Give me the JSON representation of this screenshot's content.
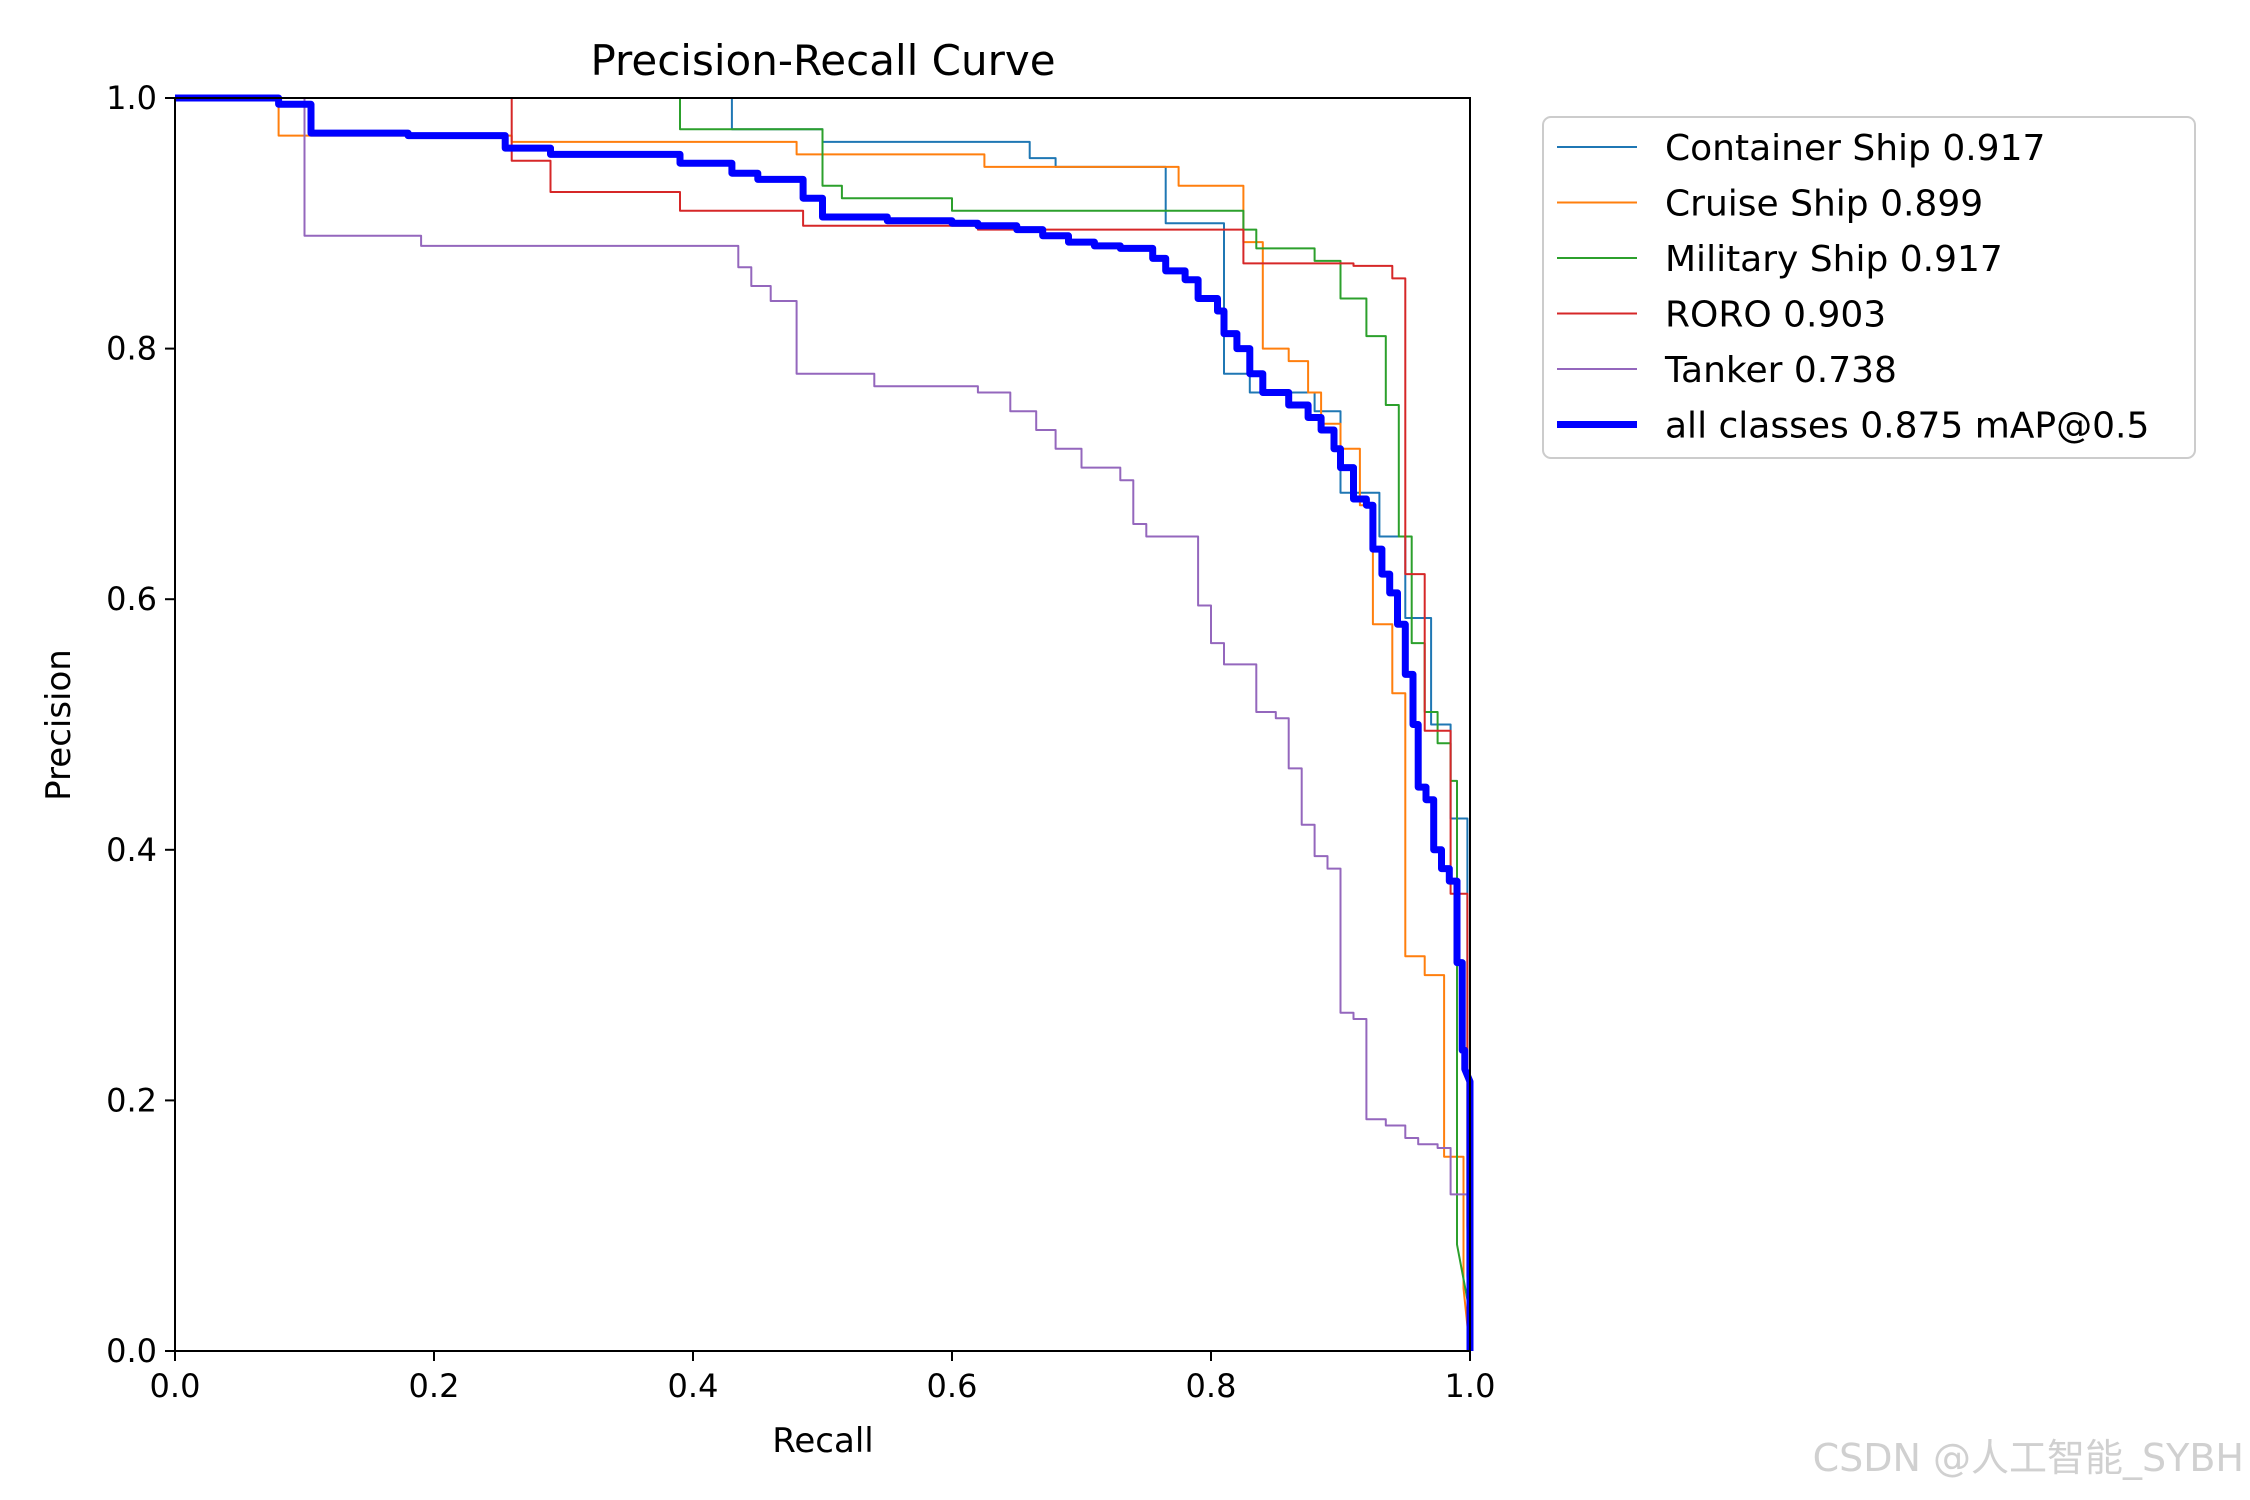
{
  "chart_data": {
    "type": "line",
    "title": "Precision-Recall Curve",
    "xlabel": "Recall",
    "ylabel": "Precision",
    "xlim": [
      0,
      1
    ],
    "ylim": [
      0,
      1
    ],
    "xticks": [
      "0.0",
      "0.2",
      "0.4",
      "0.6",
      "0.8",
      "1.0"
    ],
    "yticks": [
      "0.0",
      "0.2",
      "0.4",
      "0.6",
      "0.8",
      "1.0"
    ],
    "grid": false,
    "legend_position": "outside-top-right",
    "series": [
      {
        "name": "Container Ship 0.917",
        "color": "#1f77b4",
        "width": "thin",
        "points": [
          [
            0,
            1
          ],
          [
            0.43,
            1
          ],
          [
            0.43,
            0.975
          ],
          [
            0.5,
            0.975
          ],
          [
            0.5,
            0.965
          ],
          [
            0.66,
            0.965
          ],
          [
            0.66,
            0.952
          ],
          [
            0.68,
            0.952
          ],
          [
            0.68,
            0.945
          ],
          [
            0.765,
            0.945
          ],
          [
            0.765,
            0.9
          ],
          [
            0.81,
            0.9
          ],
          [
            0.81,
            0.78
          ],
          [
            0.83,
            0.78
          ],
          [
            0.83,
            0.765
          ],
          [
            0.88,
            0.765
          ],
          [
            0.88,
            0.75
          ],
          [
            0.9,
            0.75
          ],
          [
            0.9,
            0.685
          ],
          [
            0.93,
            0.685
          ],
          [
            0.93,
            0.65
          ],
          [
            0.95,
            0.65
          ],
          [
            0.95,
            0.585
          ],
          [
            0.97,
            0.585
          ],
          [
            0.97,
            0.5
          ],
          [
            0.985,
            0.5
          ],
          [
            0.985,
            0.425
          ],
          [
            0.998,
            0.425
          ],
          [
            0.998,
            0.06
          ],
          [
            1,
            0
          ]
        ]
      },
      {
        "name": "Cruise Ship 0.899",
        "color": "#ff7f0e",
        "width": "thin",
        "points": [
          [
            0,
            1
          ],
          [
            0.08,
            1
          ],
          [
            0.08,
            0.97
          ],
          [
            0.26,
            0.97
          ],
          [
            0.26,
            0.965
          ],
          [
            0.48,
            0.965
          ],
          [
            0.48,
            0.955
          ],
          [
            0.625,
            0.955
          ],
          [
            0.625,
            0.945
          ],
          [
            0.775,
            0.945
          ],
          [
            0.775,
            0.93
          ],
          [
            0.825,
            0.93
          ],
          [
            0.825,
            0.885
          ],
          [
            0.84,
            0.885
          ],
          [
            0.84,
            0.8
          ],
          [
            0.86,
            0.8
          ],
          [
            0.86,
            0.79
          ],
          [
            0.875,
            0.79
          ],
          [
            0.875,
            0.765
          ],
          [
            0.885,
            0.765
          ],
          [
            0.885,
            0.74
          ],
          [
            0.9,
            0.74
          ],
          [
            0.9,
            0.72
          ],
          [
            0.915,
            0.72
          ],
          [
            0.915,
            0.675
          ],
          [
            0.925,
            0.675
          ],
          [
            0.925,
            0.58
          ],
          [
            0.94,
            0.58
          ],
          [
            0.94,
            0.525
          ],
          [
            0.95,
            0.525
          ],
          [
            0.95,
            0.315
          ],
          [
            0.965,
            0.315
          ],
          [
            0.965,
            0.3
          ],
          [
            0.98,
            0.3
          ],
          [
            0.98,
            0.155
          ],
          [
            0.995,
            0.155
          ],
          [
            0.995,
            0.05
          ],
          [
            1,
            0
          ]
        ]
      },
      {
        "name": "Military Ship 0.917",
        "color": "#2ca02c",
        "width": "thin",
        "points": [
          [
            0,
            1
          ],
          [
            0.39,
            1
          ],
          [
            0.39,
            0.975
          ],
          [
            0.5,
            0.975
          ],
          [
            0.5,
            0.93
          ],
          [
            0.515,
            0.93
          ],
          [
            0.515,
            0.92
          ],
          [
            0.6,
            0.92
          ],
          [
            0.6,
            0.91
          ],
          [
            0.825,
            0.91
          ],
          [
            0.825,
            0.895
          ],
          [
            0.835,
            0.895
          ],
          [
            0.835,
            0.88
          ],
          [
            0.88,
            0.88
          ],
          [
            0.88,
            0.87
          ],
          [
            0.9,
            0.87
          ],
          [
            0.9,
            0.84
          ],
          [
            0.92,
            0.84
          ],
          [
            0.92,
            0.81
          ],
          [
            0.935,
            0.81
          ],
          [
            0.935,
            0.755
          ],
          [
            0.945,
            0.755
          ],
          [
            0.945,
            0.65
          ],
          [
            0.955,
            0.65
          ],
          [
            0.955,
            0.565
          ],
          [
            0.965,
            0.565
          ],
          [
            0.965,
            0.51
          ],
          [
            0.975,
            0.51
          ],
          [
            0.975,
            0.485
          ],
          [
            0.985,
            0.485
          ],
          [
            0.985,
            0.455
          ],
          [
            0.99,
            0.455
          ],
          [
            0.99,
            0.085
          ],
          [
            1,
            0.03
          ],
          [
            1,
            0
          ]
        ]
      },
      {
        "name": "RORO 0.903",
        "color": "#d62728",
        "width": "thin",
        "points": [
          [
            0,
            1
          ],
          [
            0.26,
            1
          ],
          [
            0.26,
            0.95
          ],
          [
            0.29,
            0.95
          ],
          [
            0.29,
            0.925
          ],
          [
            0.39,
            0.925
          ],
          [
            0.39,
            0.91
          ],
          [
            0.485,
            0.91
          ],
          [
            0.485,
            0.898
          ],
          [
            0.62,
            0.898
          ],
          [
            0.62,
            0.895
          ],
          [
            0.825,
            0.895
          ],
          [
            0.825,
            0.868
          ],
          [
            0.91,
            0.868
          ],
          [
            0.91,
            0.866
          ],
          [
            0.94,
            0.866
          ],
          [
            0.94,
            0.856
          ],
          [
            0.95,
            0.856
          ],
          [
            0.95,
            0.62
          ],
          [
            0.965,
            0.62
          ],
          [
            0.965,
            0.495
          ],
          [
            0.985,
            0.495
          ],
          [
            0.985,
            0.365
          ],
          [
            0.998,
            0.365
          ],
          [
            0.998,
            0.1
          ],
          [
            1,
            0
          ]
        ]
      },
      {
        "name": "Tanker 0.738",
        "color": "#9467bd",
        "width": "thin",
        "points": [
          [
            0,
            1
          ],
          [
            0.1,
            1
          ],
          [
            0.1,
            0.89
          ],
          [
            0.19,
            0.89
          ],
          [
            0.19,
            0.882
          ],
          [
            0.435,
            0.882
          ],
          [
            0.435,
            0.865
          ],
          [
            0.445,
            0.865
          ],
          [
            0.445,
            0.85
          ],
          [
            0.46,
            0.85
          ],
          [
            0.46,
            0.838
          ],
          [
            0.48,
            0.838
          ],
          [
            0.48,
            0.78
          ],
          [
            0.54,
            0.78
          ],
          [
            0.54,
            0.77
          ],
          [
            0.62,
            0.77
          ],
          [
            0.62,
            0.765
          ],
          [
            0.645,
            0.765
          ],
          [
            0.645,
            0.75
          ],
          [
            0.665,
            0.75
          ],
          [
            0.665,
            0.735
          ],
          [
            0.68,
            0.735
          ],
          [
            0.68,
            0.72
          ],
          [
            0.7,
            0.72
          ],
          [
            0.7,
            0.705
          ],
          [
            0.73,
            0.705
          ],
          [
            0.73,
            0.695
          ],
          [
            0.74,
            0.695
          ],
          [
            0.74,
            0.66
          ],
          [
            0.75,
            0.66
          ],
          [
            0.75,
            0.65
          ],
          [
            0.79,
            0.65
          ],
          [
            0.79,
            0.595
          ],
          [
            0.8,
            0.595
          ],
          [
            0.8,
            0.565
          ],
          [
            0.81,
            0.565
          ],
          [
            0.81,
            0.548
          ],
          [
            0.835,
            0.548
          ],
          [
            0.835,
            0.51
          ],
          [
            0.85,
            0.51
          ],
          [
            0.85,
            0.505
          ],
          [
            0.86,
            0.505
          ],
          [
            0.86,
            0.465
          ],
          [
            0.87,
            0.465
          ],
          [
            0.87,
            0.42
          ],
          [
            0.88,
            0.42
          ],
          [
            0.88,
            0.395
          ],
          [
            0.89,
            0.395
          ],
          [
            0.89,
            0.385
          ],
          [
            0.9,
            0.385
          ],
          [
            0.9,
            0.27
          ],
          [
            0.91,
            0.27
          ],
          [
            0.91,
            0.265
          ],
          [
            0.92,
            0.265
          ],
          [
            0.92,
            0.185
          ],
          [
            0.935,
            0.185
          ],
          [
            0.935,
            0.18
          ],
          [
            0.95,
            0.18
          ],
          [
            0.95,
            0.17
          ],
          [
            0.96,
            0.17
          ],
          [
            0.96,
            0.165
          ],
          [
            0.975,
            0.165
          ],
          [
            0.975,
            0.162
          ],
          [
            0.985,
            0.162
          ],
          [
            0.985,
            0.125
          ],
          [
            0.998,
            0.125
          ],
          [
            1,
            0
          ]
        ]
      },
      {
        "name": "all classes 0.875 mAP@0.5",
        "color": "#0000ff",
        "width": "thick",
        "points": [
          [
            0,
            1
          ],
          [
            0.08,
            1
          ],
          [
            0.08,
            0.995
          ],
          [
            0.105,
            0.995
          ],
          [
            0.105,
            0.972
          ],
          [
            0.18,
            0.972
          ],
          [
            0.18,
            0.97
          ],
          [
            0.255,
            0.97
          ],
          [
            0.255,
            0.96
          ],
          [
            0.29,
            0.96
          ],
          [
            0.29,
            0.955
          ],
          [
            0.39,
            0.955
          ],
          [
            0.39,
            0.948
          ],
          [
            0.43,
            0.948
          ],
          [
            0.43,
            0.94
          ],
          [
            0.45,
            0.94
          ],
          [
            0.45,
            0.935
          ],
          [
            0.485,
            0.935
          ],
          [
            0.485,
            0.92
          ],
          [
            0.5,
            0.92
          ],
          [
            0.5,
            0.905
          ],
          [
            0.55,
            0.905
          ],
          [
            0.55,
            0.902
          ],
          [
            0.6,
            0.902
          ],
          [
            0.6,
            0.9
          ],
          [
            0.62,
            0.9
          ],
          [
            0.62,
            0.898
          ],
          [
            0.65,
            0.898
          ],
          [
            0.65,
            0.895
          ],
          [
            0.67,
            0.895
          ],
          [
            0.67,
            0.89
          ],
          [
            0.69,
            0.89
          ],
          [
            0.69,
            0.885
          ],
          [
            0.71,
            0.885
          ],
          [
            0.71,
            0.882
          ],
          [
            0.73,
            0.882
          ],
          [
            0.73,
            0.88
          ],
          [
            0.755,
            0.88
          ],
          [
            0.755,
            0.872
          ],
          [
            0.765,
            0.872
          ],
          [
            0.765,
            0.862
          ],
          [
            0.78,
            0.862
          ],
          [
            0.78,
            0.855
          ],
          [
            0.79,
            0.855
          ],
          [
            0.79,
            0.84
          ],
          [
            0.805,
            0.84
          ],
          [
            0.805,
            0.83
          ],
          [
            0.81,
            0.83
          ],
          [
            0.81,
            0.812
          ],
          [
            0.82,
            0.812
          ],
          [
            0.82,
            0.8
          ],
          [
            0.83,
            0.8
          ],
          [
            0.83,
            0.78
          ],
          [
            0.84,
            0.78
          ],
          [
            0.84,
            0.765
          ],
          [
            0.86,
            0.765
          ],
          [
            0.86,
            0.755
          ],
          [
            0.875,
            0.755
          ],
          [
            0.875,
            0.745
          ],
          [
            0.885,
            0.745
          ],
          [
            0.885,
            0.735
          ],
          [
            0.895,
            0.735
          ],
          [
            0.895,
            0.72
          ],
          [
            0.9,
            0.72
          ],
          [
            0.9,
            0.705
          ],
          [
            0.91,
            0.705
          ],
          [
            0.91,
            0.68
          ],
          [
            0.92,
            0.68
          ],
          [
            0.92,
            0.675
          ],
          [
            0.925,
            0.675
          ],
          [
            0.925,
            0.64
          ],
          [
            0.932,
            0.64
          ],
          [
            0.932,
            0.62
          ],
          [
            0.938,
            0.62
          ],
          [
            0.938,
            0.605
          ],
          [
            0.944,
            0.605
          ],
          [
            0.944,
            0.58
          ],
          [
            0.95,
            0.58
          ],
          [
            0.95,
            0.54
          ],
          [
            0.956,
            0.54
          ],
          [
            0.956,
            0.5
          ],
          [
            0.96,
            0.5
          ],
          [
            0.96,
            0.45
          ],
          [
            0.966,
            0.45
          ],
          [
            0.966,
            0.44
          ],
          [
            0.972,
            0.44
          ],
          [
            0.972,
            0.4
          ],
          [
            0.978,
            0.4
          ],
          [
            0.978,
            0.385
          ],
          [
            0.984,
            0.385
          ],
          [
            0.984,
            0.375
          ],
          [
            0.99,
            0.375
          ],
          [
            0.99,
            0.31
          ],
          [
            0.994,
            0.31
          ],
          [
            0.994,
            0.24
          ],
          [
            0.996,
            0.24
          ],
          [
            0.996,
            0.225
          ],
          [
            1,
            0.215
          ],
          [
            1,
            0
          ]
        ]
      }
    ]
  },
  "watermark": "CSDN @人工智能_SYBH"
}
